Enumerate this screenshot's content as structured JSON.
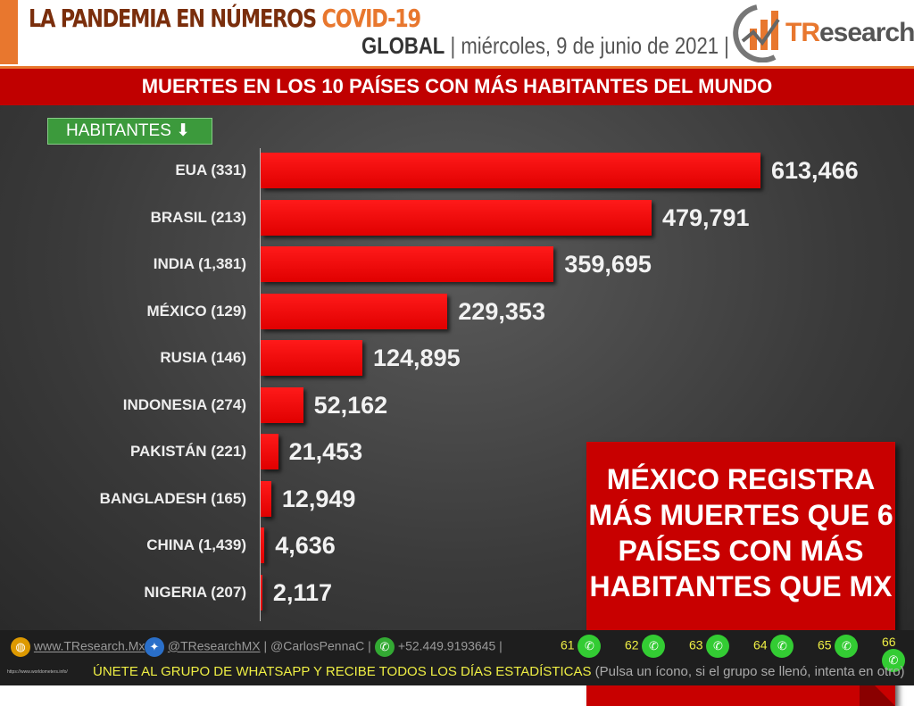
{
  "header": {
    "title": "LA PANDEMIA EN NÚMEROS",
    "title_accent": "COVID-19",
    "scope": "GLOBAL",
    "date": "| miércoles, 9 de junio de 2021 |",
    "logo_text_a": "TR",
    "logo_text_b": "esearch"
  },
  "banner": "MUERTES EN LOS 10 PAÍSES CON MÁS HABITANTES DEL MUNDO",
  "sort_label": "HABITANTES",
  "chart_data": {
    "type": "bar",
    "orientation": "horizontal",
    "title": "MUERTES EN LOS 10 PAÍSES CON MÁS HABITANTES DEL MUNDO",
    "categories": [
      "EUA (331)",
      "BRASIL (213)",
      "INDIA (1,381)",
      "MÉXICO (129)",
      "RUSIA (146)",
      "INDONESIA (274)",
      "PAKISTÁN (221)",
      "BANGLADESH (165)",
      "CHINA (1,439)",
      "NIGERIA (207)"
    ],
    "values": [
      613466,
      479791,
      359695,
      229353,
      124895,
      52162,
      21453,
      12949,
      4636,
      2117
    ],
    "value_labels": [
      "613,466",
      "479,791",
      "359,695",
      "229,353",
      "124,895",
      "52,162",
      "21,453",
      "12,949",
      "4,636",
      "2,117"
    ],
    "bar_color": "#ff0000",
    "grid": false
  },
  "callout": "MÉXICO REGISTRA MÁS MUERTES QUE 6 PAÍSES CON MÁS HABITANTES QUE MX",
  "footer": {
    "website": "www.TResearch.Mx",
    "twitter": "@TResearchMX",
    "personal": "@CarlosPennaC",
    "phone": "+52.449.9193645",
    "groups": [
      "61",
      "62",
      "63",
      "64",
      "65",
      "66"
    ],
    "join": "ÚNETE AL GRUPO DE WHATSAPP Y RECIBE TODOS LOS DÍAS ESTADÍSTICAS",
    "join_note": "(Pulsa un ícono, si el grupo se llenó, intenta en otro)",
    "source": "https://www.worldometers.info/"
  }
}
